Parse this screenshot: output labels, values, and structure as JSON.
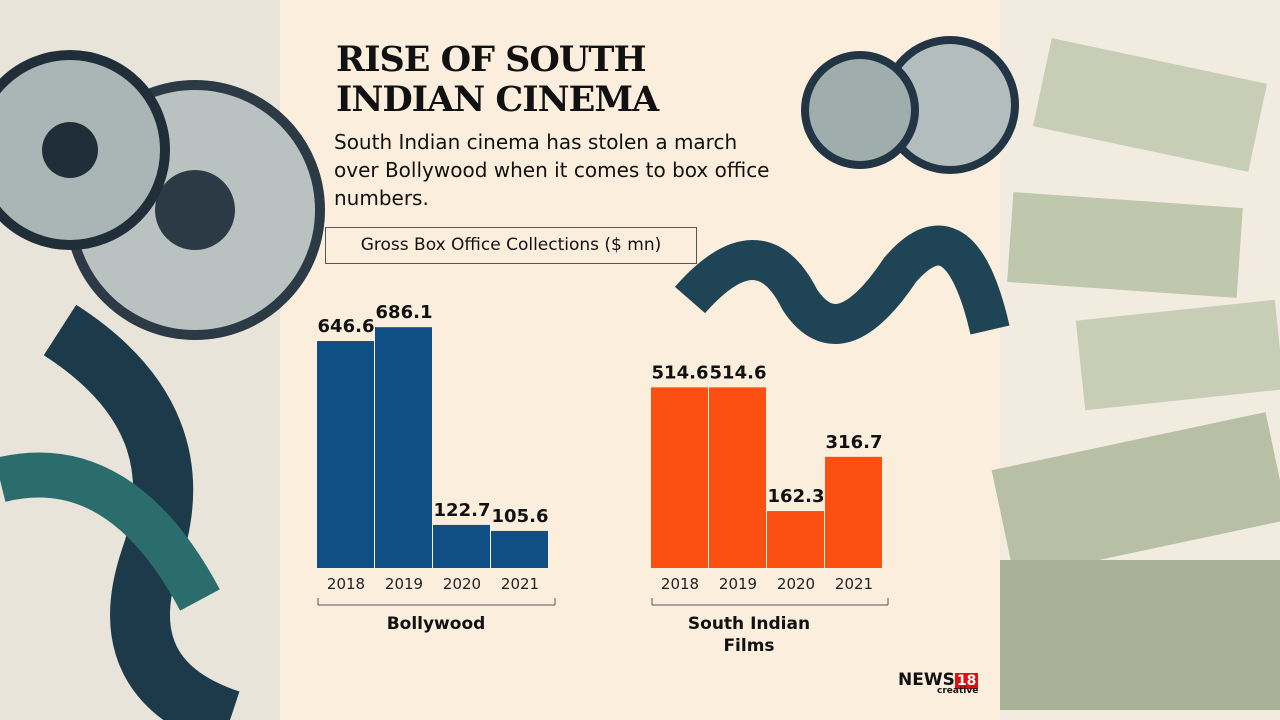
{
  "title": "RISE OF SOUTH INDIAN CINEMA",
  "subtitle": "South Indian cinema has stolen a march over Bollywood when it comes to box office numbers.",
  "unit_label": "Gross Box Office Collections ($ mn)",
  "logo": {
    "brand": "NEWS",
    "number": "18",
    "tag": "creative"
  },
  "chart_data": [
    {
      "type": "bar",
      "xlabel": "Bollywood",
      "categories": [
        "2018",
        "2019",
        "2020",
        "2021"
      ],
      "values": [
        646.6,
        686.1,
        122.7,
        105.6
      ],
      "color": "#0f4f85"
    },
    {
      "type": "bar",
      "xlabel": "South Indian Films",
      "categories": [
        "2018",
        "2019",
        "2020",
        "2021"
      ],
      "values": [
        514.6,
        514.6,
        162.3,
        316.7
      ],
      "color": "#fb5012"
    }
  ]
}
